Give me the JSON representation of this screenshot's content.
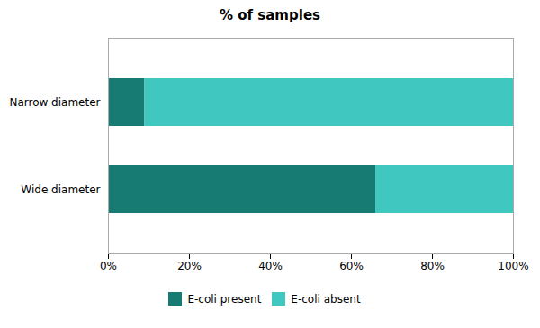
{
  "chart_data": {
    "type": "bar",
    "title": "% of samples",
    "orientation": "horizontal",
    "stacked": true,
    "categories": [
      "Wide diameter",
      "Narrow diameter"
    ],
    "series": [
      {
        "name": "E-coli present",
        "color": "#177b74",
        "values": [
          66,
          9
        ]
      },
      {
        "name": "E-coli absent",
        "color": "#40c8c0",
        "values": [
          34,
          91
        ]
      }
    ],
    "xlim": [
      0,
      100
    ],
    "xticks": [
      {
        "value": 0,
        "label": "0%"
      },
      {
        "value": 20,
        "label": "20%"
      },
      {
        "value": 40,
        "label": "40%"
      },
      {
        "value": 60,
        "label": "60%"
      },
      {
        "value": 80,
        "label": "80%"
      },
      {
        "value": 100,
        "label": "100%"
      }
    ],
    "grid": false,
    "legend": "bottom"
  }
}
